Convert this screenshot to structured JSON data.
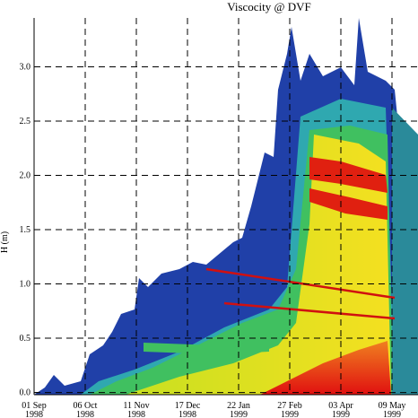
{
  "chart_data": {
    "type": "contour",
    "title": "Viscocity @ DVF",
    "ylabel": "H (m)",
    "ylim": [
      -0.02,
      3.45
    ],
    "yticks": [
      {
        "value": 0,
        "label": "0.0"
      },
      {
        "value": 0.5,
        "label": "0.5"
      },
      {
        "value": 1,
        "label": "1.0"
      },
      {
        "value": 1.5,
        "label": "1.5"
      },
      {
        "value": 2,
        "label": "2.0"
      },
      {
        "value": 2.5,
        "label": "2.5"
      },
      {
        "value": 3,
        "label": "3.0"
      }
    ],
    "xticks": [
      {
        "day": "01 Sep",
        "year": "1998"
      },
      {
        "day": "06 Oct",
        "year": "1998"
      },
      {
        "day": "11 Nov",
        "year": "1998"
      },
      {
        "day": "17 Dec",
        "year": "1998"
      },
      {
        "day": "22 Jan",
        "year": "1999"
      },
      {
        "day": "27 Feb",
        "year": "1999"
      },
      {
        "day": "03 Apr",
        "year": "1999"
      },
      {
        "day": "09 May",
        "year": "1999"
      }
    ],
    "grid": true
  }
}
